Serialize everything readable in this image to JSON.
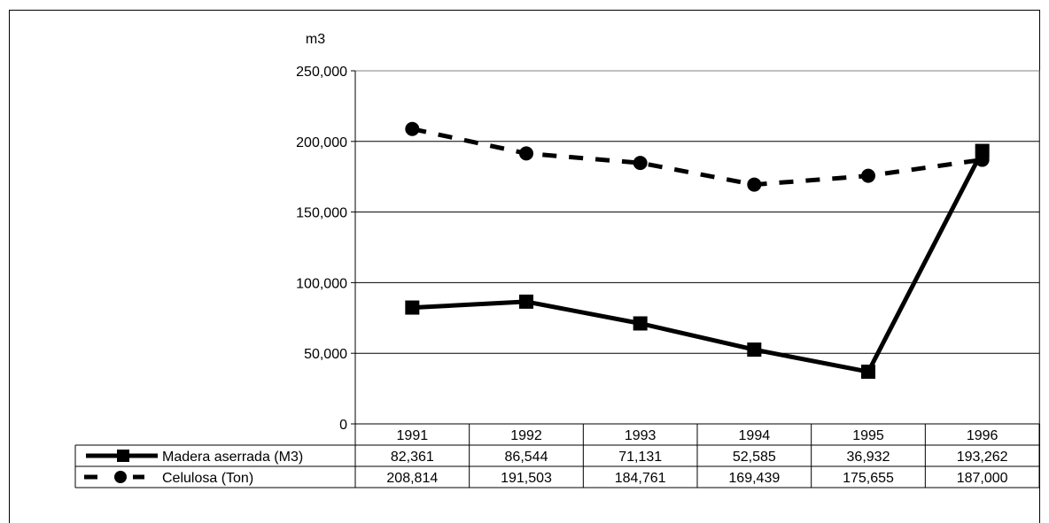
{
  "chart_data": {
    "type": "line",
    "ylabel": "m3",
    "ylim": [
      0,
      250000
    ],
    "yticks": [
      0,
      50000,
      100000,
      150000,
      200000,
      250000
    ],
    "ytick_labels": [
      "0",
      "50,000",
      "100,000",
      "150,000",
      "200,000",
      "250,000"
    ],
    "grid": true,
    "categories": [
      "1991",
      "1992",
      "1993",
      "1994",
      "1995",
      "1996"
    ],
    "series": [
      {
        "name": "Madera aserrada (M3)",
        "style": "solid",
        "marker": "square",
        "color": "#000000",
        "values": [
          82361,
          86544,
          71131,
          52585,
          36932,
          193262
        ],
        "labels": [
          "82,361",
          "86,544",
          "71,131",
          "52,585",
          "36,932",
          "193,262"
        ]
      },
      {
        "name": "Celulosa (Ton)",
        "style": "dashed",
        "marker": "circle",
        "color": "#000000",
        "values": [
          208814,
          191503,
          184761,
          169439,
          175655,
          187000
        ],
        "labels": [
          "208,814",
          "191,503",
          "184,761",
          "169,439",
          "175,655",
          "187,000"
        ]
      }
    ],
    "legend": "data-table"
  }
}
